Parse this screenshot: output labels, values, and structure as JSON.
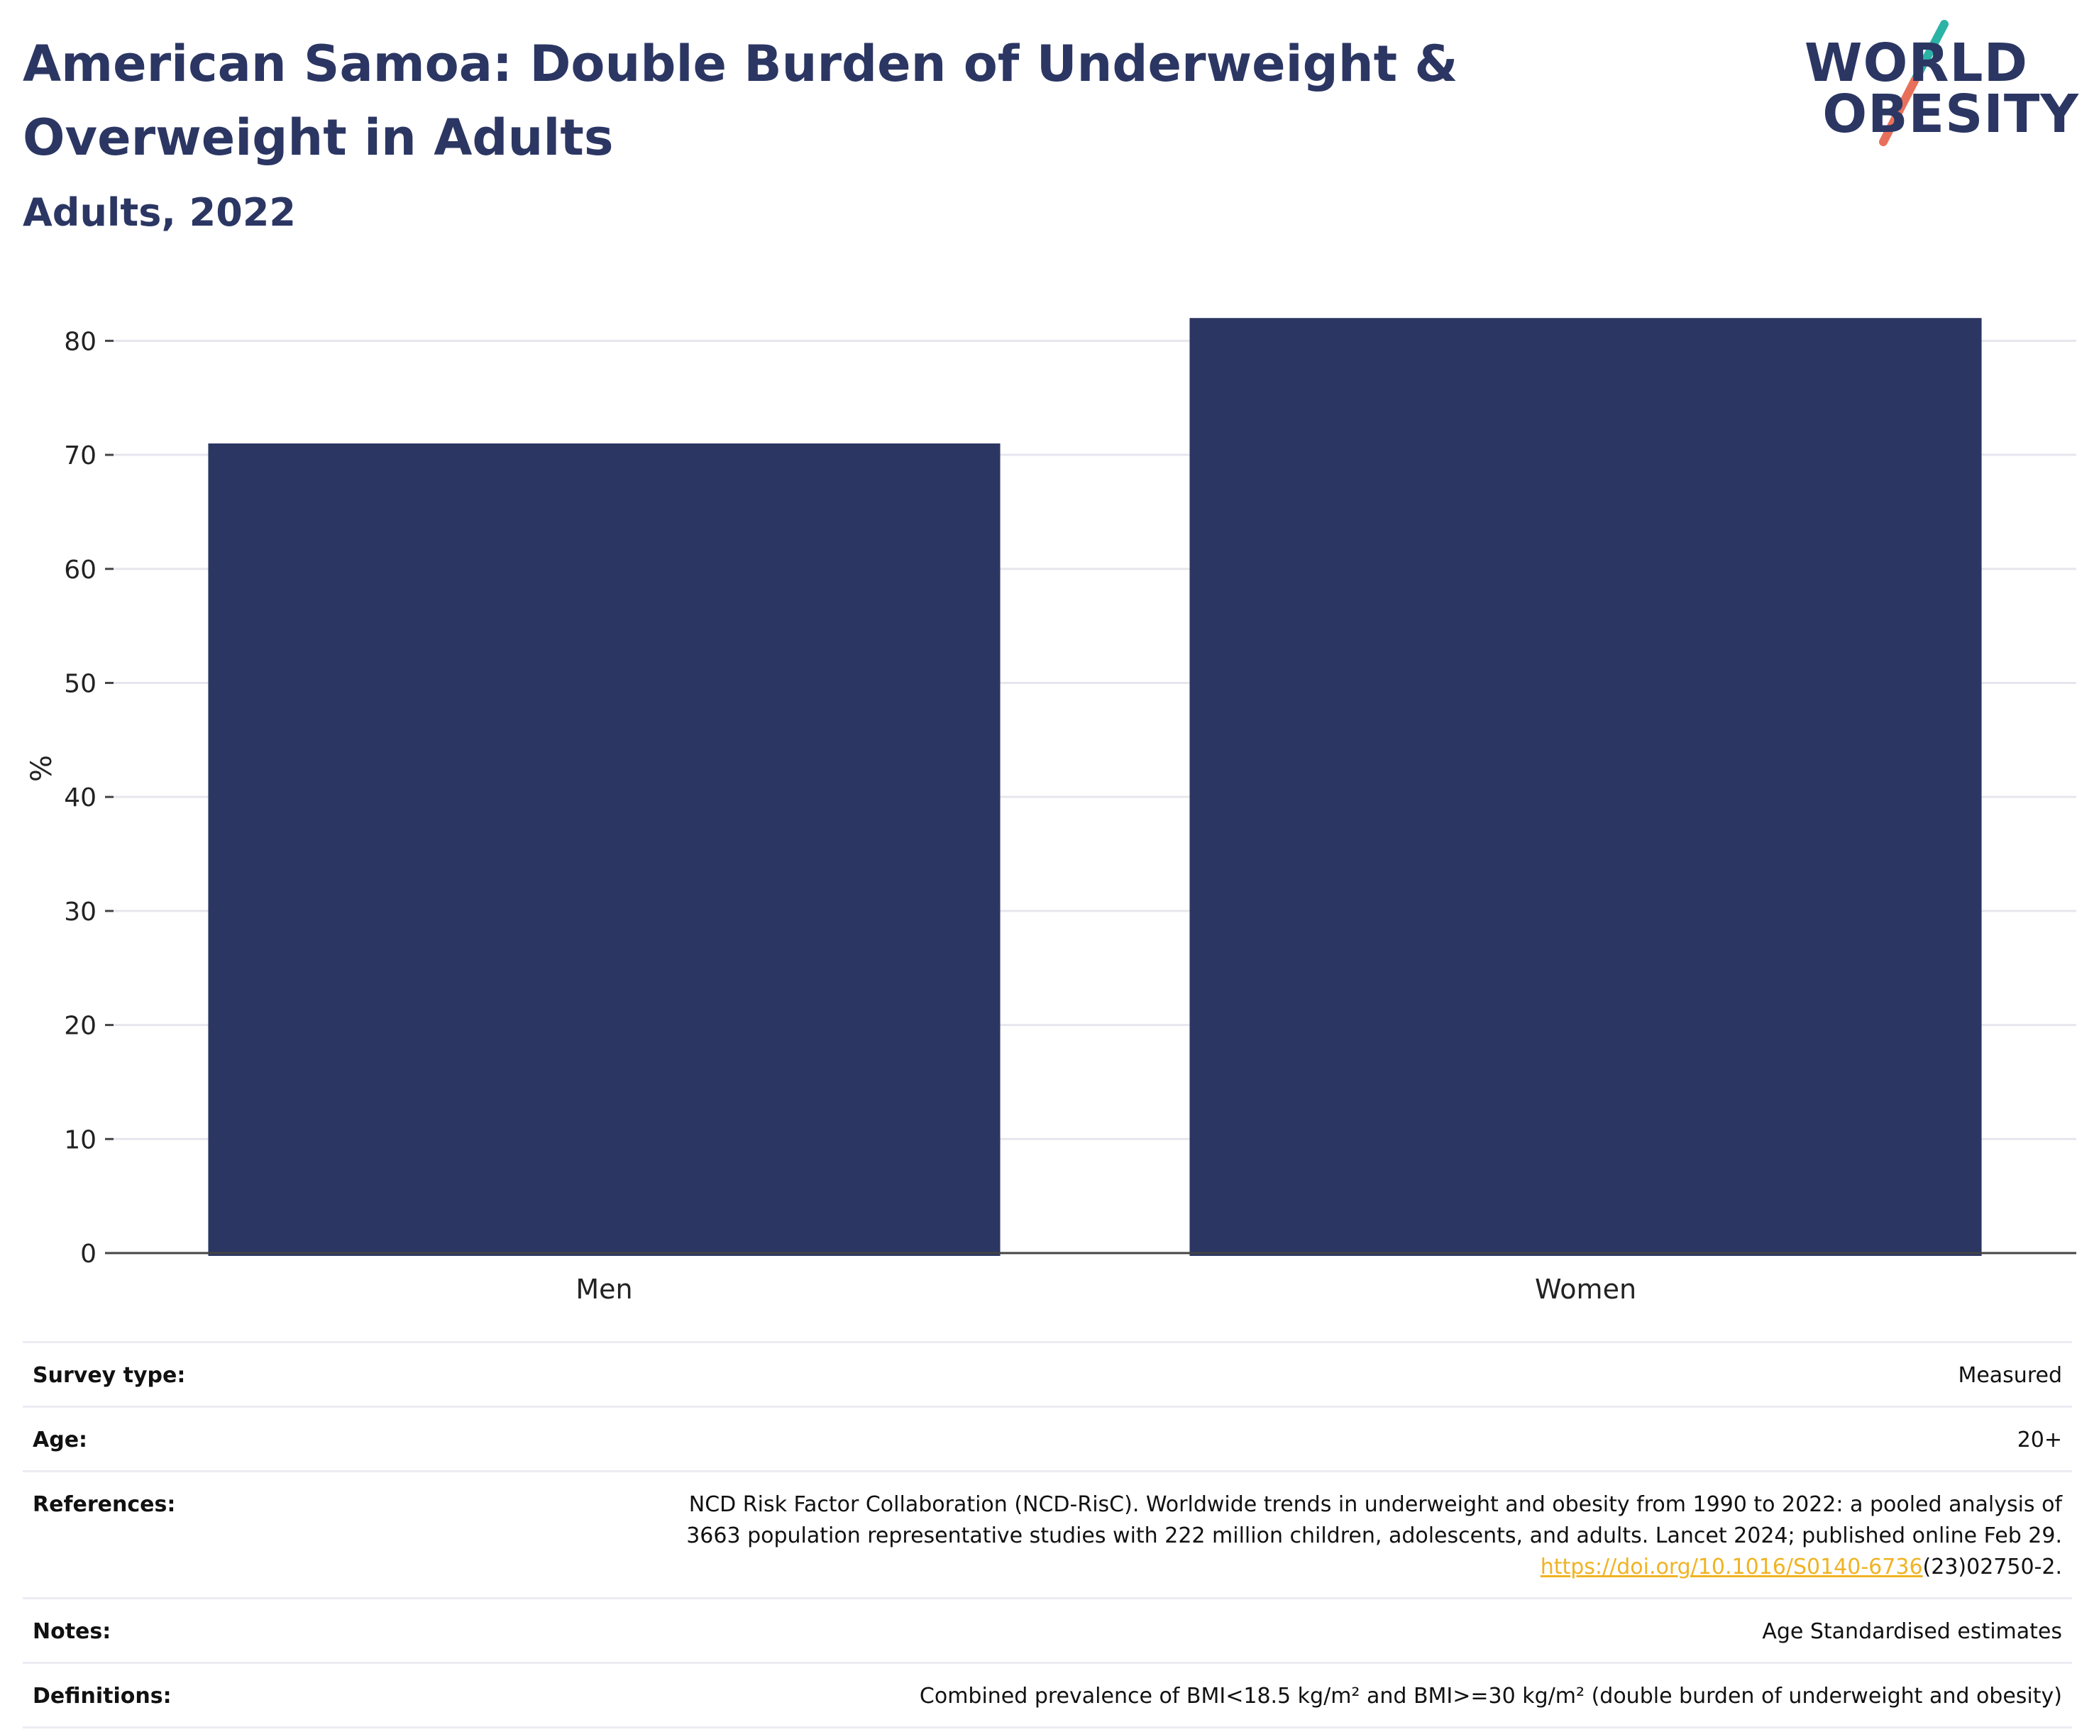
{
  "header": {
    "title": "American Samoa: Double Burden of Underweight & Overweight in Adults",
    "subtitle": "Adults, 2022"
  },
  "logo": {
    "line1": "WORLD",
    "line2": "OBESITY",
    "colors": {
      "text": "#2b3663",
      "slash_top": "#2bb3a6",
      "slash_bottom": "#e8705a"
    }
  },
  "chart_data": {
    "type": "bar",
    "categories": [
      "Men",
      "Women"
    ],
    "values": [
      71,
      82
    ],
    "title": "",
    "xlabel": "",
    "ylabel": "%",
    "ylim": [
      0,
      85
    ],
    "yticks": [
      0,
      10,
      20,
      30,
      40,
      50,
      60,
      70,
      80
    ],
    "grid": true,
    "legend": "none",
    "colors": {
      "bar": "#2b3663",
      "grid": "#e6e6ee",
      "axis": "#444444"
    }
  },
  "info": [
    {
      "label": "Survey type:",
      "value": "Measured"
    },
    {
      "label": "Age:",
      "value": "20+"
    },
    {
      "label": "References:",
      "value_line1": "NCD Risk Factor Collaboration (NCD-RisC). Worldwide trends in underweight and obesity from 1990 to 2022: a pooled analysis of",
      "value_line2": "3663 population representative studies with 222 million children, adolescents, and adults. Lancet 2024; published online Feb 29.",
      "link_text": "https://doi.org/10.1016/S0140-6736",
      "link_suffix": "(23)02750-2."
    },
    {
      "label": "Notes:",
      "value": "Age Standardised estimates"
    },
    {
      "label": "Definitions:",
      "value": "Combined prevalence of BMI<18.5 kg/m² and BMI>=30 kg/m² (double burden of underweight and obesity)"
    }
  ]
}
